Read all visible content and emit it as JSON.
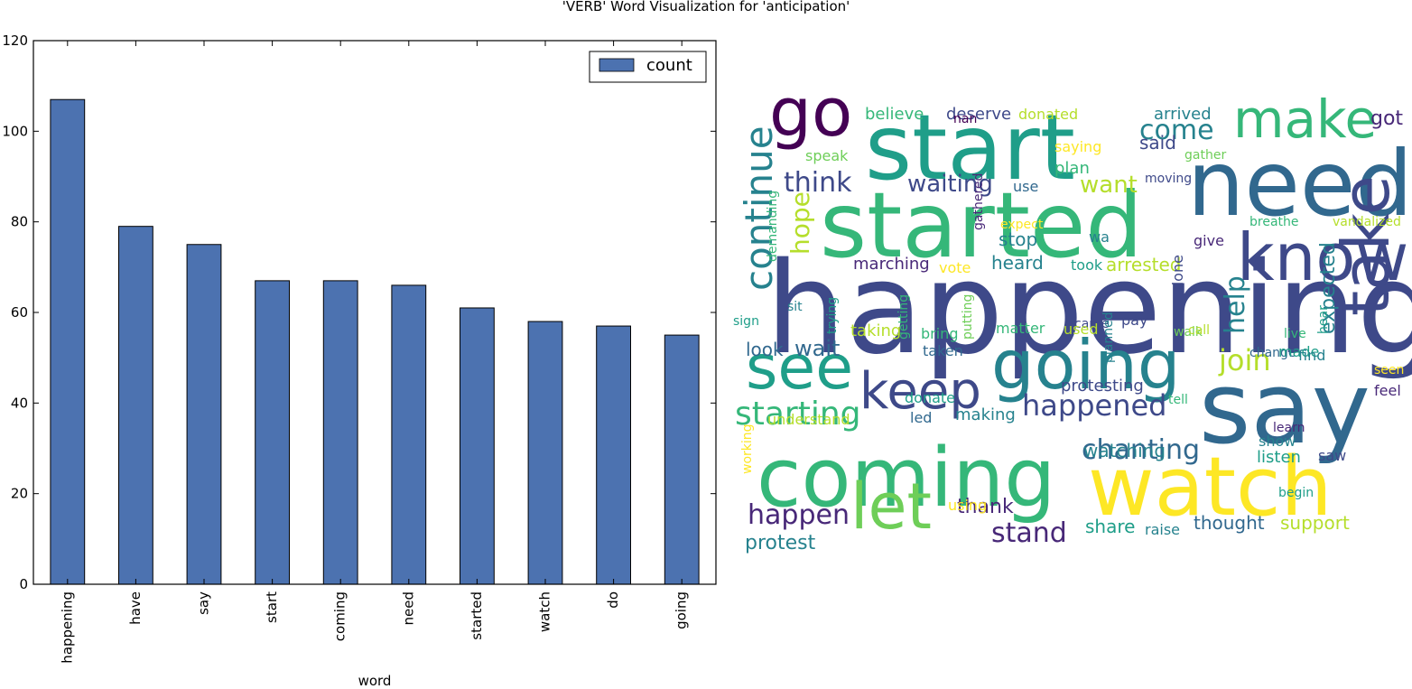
{
  "figure": {
    "title": "'VERB' Word Visualization for 'anticipation'"
  },
  "colors": {
    "bar_fill": "#4c72b0",
    "bar_edge": "#000000",
    "axis": "#000000"
  },
  "chart_data": [
    {
      "type": "bar",
      "categories": [
        "happening",
        "have",
        "say",
        "start",
        "coming",
        "need",
        "started",
        "watch",
        "do",
        "going"
      ],
      "series": [
        {
          "name": "count",
          "values": [
            107,
            79,
            75,
            67,
            67,
            66,
            61,
            58,
            57,
            55
          ]
        }
      ],
      "xlabel": "word",
      "ylabel": "",
      "ylim": [
        0,
        120
      ],
      "yticks": [
        0,
        20,
        40,
        60,
        80,
        100,
        120
      ],
      "legend": "top-right",
      "grid": false
    },
    {
      "type": "wordcloud",
      "words": [
        "happening",
        "say",
        "coming",
        "watch",
        "started",
        "start",
        "need",
        "going",
        "know",
        "take",
        "let",
        "see",
        "go",
        "make",
        "keep",
        "continue",
        "starting",
        "happened",
        "chanting",
        "happen",
        "stand",
        "think",
        "come",
        "waiting",
        "want",
        "join",
        "help",
        "hope",
        "wait",
        "protest",
        "look",
        "thank",
        "marching",
        "arrested",
        "expected",
        "got",
        "said",
        "arrived",
        "believe",
        "deserve",
        "donated",
        "speak",
        "saying",
        "gather",
        "plan",
        "moving",
        "use",
        "demanding",
        "gathered",
        "expect",
        "breathe",
        "vandalized",
        "give",
        "stop",
        "heard",
        "took",
        "vote",
        "wa",
        "sit",
        "sign",
        "trying",
        "getting",
        "putting",
        "done",
        "came",
        "hear",
        "walk",
        "pay",
        "call",
        "live",
        "change",
        "made",
        "find",
        "seen",
        "feel",
        "tell",
        "learn",
        "show",
        "saw",
        "listen",
        "begin",
        "support",
        "thought",
        "raise",
        "share",
        "using",
        "led",
        "making",
        "donate",
        "understand",
        "working",
        "protesting",
        "taking",
        "bring",
        "taken",
        "matter",
        "used",
        "planned",
        "watching",
        "nan"
      ]
    }
  ]
}
